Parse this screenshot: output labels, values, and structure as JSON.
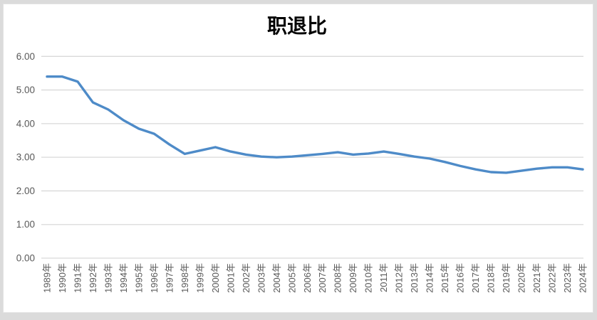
{
  "chart_data": {
    "type": "line",
    "title": "职退比",
    "x": [
      "1989年",
      "1990年",
      "1991年",
      "1992年",
      "1993年",
      "1994年",
      "1995年",
      "1996年",
      "1997年",
      "1998年",
      "1999年",
      "2000年",
      "2001年",
      "2002年",
      "2003年",
      "2004年",
      "2005年",
      "2006年",
      "2007年",
      "2008年",
      "2009年",
      "2010年",
      "2011年",
      "2012年",
      "2013年",
      "2014年",
      "2015年",
      "2016年",
      "2017年",
      "2018年",
      "2019年",
      "2020年",
      "2021年",
      "2022年",
      "2023年",
      "2024年"
    ],
    "values": [
      5.4,
      5.4,
      5.25,
      4.63,
      4.42,
      4.1,
      3.85,
      3.7,
      3.38,
      3.1,
      3.2,
      3.3,
      3.17,
      3.08,
      3.02,
      3.0,
      3.02,
      3.06,
      3.1,
      3.15,
      3.08,
      3.11,
      3.17,
      3.1,
      3.02,
      2.96,
      2.86,
      2.74,
      2.64,
      2.56,
      2.54,
      2.6,
      2.66,
      2.7,
      2.7,
      2.64
    ],
    "ylim": [
      0,
      6
    ],
    "yticks": [
      0,
      1,
      2,
      3,
      4,
      5,
      6
    ],
    "ytick_labels": [
      "0.00",
      "1.00",
      "2.00",
      "3.00",
      "4.00",
      "5.00",
      "6.00"
    ],
    "grid": true,
    "legend": "none",
    "xlabel": "",
    "ylabel": "",
    "colors": {
      "series_line": "#4e8bc8",
      "gridline": "#d9d9d9",
      "tick_label": "#595959",
      "title": "#333333",
      "plot_background": "#ffffff",
      "outer_background": "#dbdbdb"
    }
  }
}
